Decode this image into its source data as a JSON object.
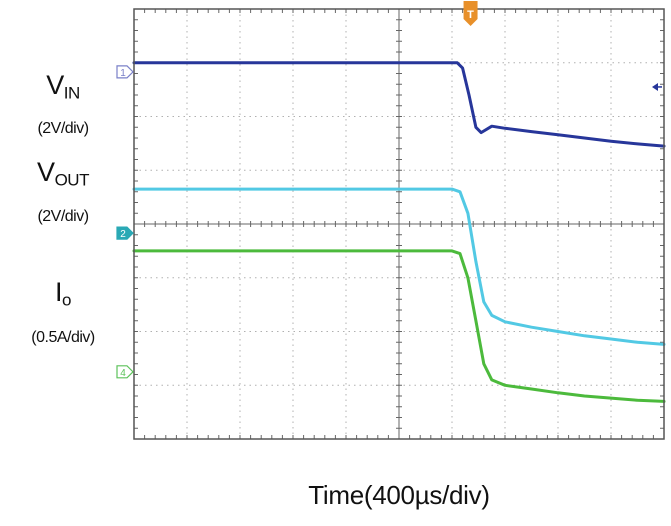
{
  "chart_data": {
    "type": "line",
    "xlabel": "Time(400µs/div)",
    "x_divisions": 10,
    "y_divisions": 8,
    "trigger_marker": "T",
    "trigger_color": "#e8902a",
    "channel_labels": [
      {
        "id": "vin",
        "name": "V",
        "sub": "IN",
        "scale": "(2V/div)"
      },
      {
        "id": "vout",
        "name": "V",
        "sub": "OUT",
        "scale": "(2V/div)"
      },
      {
        "id": "io",
        "name": "I",
        "sub": "o",
        "scale": "(0.5A/div)"
      }
    ],
    "channel_markers": [
      {
        "label": "1",
        "color": "#7a80c8",
        "filled": false,
        "y_div": 6.83
      },
      {
        "label": "2",
        "color": "#2aa9b5",
        "filled": true,
        "y_div": 3.83
      },
      {
        "label": "4",
        "color": "#5cc25a",
        "filled": false,
        "y_div": 1.25
      }
    ],
    "series": [
      {
        "name": "VIN",
        "color": "#27369a",
        "points": [
          [
            0,
            7.0
          ],
          [
            6.1,
            7.0
          ],
          [
            6.2,
            6.9
          ],
          [
            6.32,
            6.4
          ],
          [
            6.45,
            5.8
          ],
          [
            6.55,
            5.7
          ],
          [
            6.75,
            5.82
          ],
          [
            7.0,
            5.78
          ],
          [
            7.5,
            5.72
          ],
          [
            8.0,
            5.66
          ],
          [
            8.5,
            5.6
          ],
          [
            9.0,
            5.54
          ],
          [
            9.5,
            5.49
          ],
          [
            10,
            5.45
          ]
        ]
      },
      {
        "name": "VOUT",
        "color": "#52c9e4",
        "points": [
          [
            0,
            4.65
          ],
          [
            6.0,
            4.65
          ],
          [
            6.15,
            4.6
          ],
          [
            6.3,
            4.2
          ],
          [
            6.45,
            3.3
          ],
          [
            6.6,
            2.55
          ],
          [
            6.75,
            2.3
          ],
          [
            7.0,
            2.18
          ],
          [
            7.5,
            2.08
          ],
          [
            8.0,
            2.0
          ],
          [
            8.5,
            1.92
          ],
          [
            9.0,
            1.86
          ],
          [
            9.5,
            1.8
          ],
          [
            10,
            1.76
          ]
        ]
      },
      {
        "name": "IO",
        "color": "#4cba3c",
        "points": [
          [
            0,
            3.5
          ],
          [
            6.0,
            3.5
          ],
          [
            6.15,
            3.45
          ],
          [
            6.3,
            3.0
          ],
          [
            6.45,
            2.2
          ],
          [
            6.6,
            1.4
          ],
          [
            6.75,
            1.1
          ],
          [
            7.0,
            1.0
          ],
          [
            7.5,
            0.93
          ],
          [
            8.0,
            0.86
          ],
          [
            8.5,
            0.8
          ],
          [
            9.0,
            0.76
          ],
          [
            9.5,
            0.72
          ],
          [
            10,
            0.7
          ]
        ]
      }
    ]
  }
}
